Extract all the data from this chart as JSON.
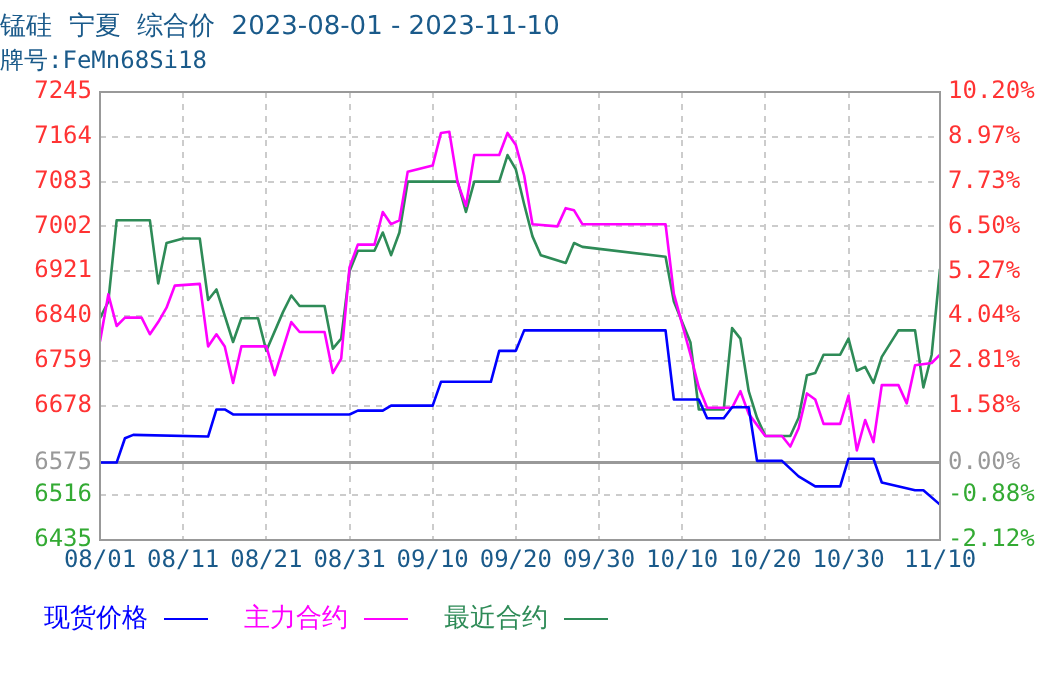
{
  "chart_data": {
    "type": "line",
    "title": "锰硅  宁夏  综合价  2023-08-01 - 2023-11-10",
    "subtitle": "牌号:FeMn68Si18",
    "xlim": [
      "2023-08-01",
      "2023-11-10"
    ],
    "xticks": [
      {
        "value": "2023-08-01",
        "label": "08/01"
      },
      {
        "value": "2023-08-11",
        "label": "08/11"
      },
      {
        "value": "2023-08-21",
        "label": "08/21"
      },
      {
        "value": "2023-08-31",
        "label": "08/31"
      },
      {
        "value": "2023-09-10",
        "label": "09/10"
      },
      {
        "value": "2023-09-20",
        "label": "09/20"
      },
      {
        "value": "2023-09-30",
        "label": "09/30"
      },
      {
        "value": "2023-10-10",
        "label": "10/10"
      },
      {
        "value": "2023-10-20",
        "label": "10/20"
      },
      {
        "value": "2023-10-30",
        "label": "10/30"
      },
      {
        "value": "2023-11-10",
        "label": "11/10"
      }
    ],
    "ylim": [
      6435,
      7245
    ],
    "yticks": [
      6435,
      6516,
      6575,
      6678,
      6759,
      6840,
      6921,
      7002,
      7083,
      7164,
      7245
    ],
    "y2lim": [
      -2.12,
      10.2
    ],
    "y2ticks": [
      {
        "value": -2.12,
        "label": "-2.12%"
      },
      {
        "value": -0.88,
        "label": "-0.88%"
      },
      {
        "value": 0,
        "label": "0.00%"
      },
      {
        "value": 1.58,
        "label": "1.58%"
      },
      {
        "value": 2.81,
        "label": "2.81%"
      },
      {
        "value": 4.04,
        "label": "4.04%"
      },
      {
        "value": 5.27,
        "label": "5.27%"
      },
      {
        "value": 6.5,
        "label": "6.50%"
      },
      {
        "value": 7.73,
        "label": "7.73%"
      },
      {
        "value": 8.97,
        "label": "8.97%"
      },
      {
        "value": 10.2,
        "label": "10.20%"
      }
    ],
    "ref_lines": [
      {
        "axis": "y",
        "value": 6575,
        "color": "#999999"
      }
    ],
    "grid": true,
    "legend": "bottom",
    "marker": "none",
    "line_style": "solid",
    "series": [
      {
        "name": "现货价格",
        "color": "#0000ff",
        "x": [
          "2023-08-01",
          "2023-08-03",
          "2023-08-04",
          "2023-08-05",
          "2023-08-14",
          "2023-08-15",
          "2023-08-16",
          "2023-08-17",
          "2023-08-31",
          "2023-09-01",
          "2023-09-04",
          "2023-09-05",
          "2023-09-10",
          "2023-09-11",
          "2023-09-17",
          "2023-09-18",
          "2023-09-20",
          "2023-09-21",
          "2023-10-08",
          "2023-10-09",
          "2023-10-12",
          "2023-10-13",
          "2023-10-15",
          "2023-10-16",
          "2023-10-18",
          "2023-10-19",
          "2023-10-22",
          "2023-10-24",
          "2023-10-26",
          "2023-10-29",
          "2023-10-30",
          "2023-11-02",
          "2023-11-03",
          "2023-11-07",
          "2023-11-08",
          "2023-11-10"
        ],
        "values": [
          6575,
          6575,
          6619,
          6625,
          6622,
          6671,
          6671,
          6662,
          6662,
          6669,
          6669,
          6678,
          6678,
          6721,
          6721,
          6777,
          6777,
          6814,
          6814,
          6689,
          6689,
          6655,
          6655,
          6675,
          6675,
          6578,
          6578,
          6550,
          6532,
          6532,
          6582,
          6582,
          6539,
          6525,
          6525,
          6499
        ]
      },
      {
        "name": "主力合约",
        "color": "#ff00ff",
        "x": [
          "2023-08-01",
          "2023-08-02",
          "2023-08-03",
          "2023-08-04",
          "2023-08-06",
          "2023-08-07",
          "2023-08-08",
          "2023-08-09",
          "2023-08-10",
          "2023-08-13",
          "2023-08-14",
          "2023-08-15",
          "2023-08-16",
          "2023-08-17",
          "2023-08-18",
          "2023-08-21",
          "2023-08-22",
          "2023-08-24",
          "2023-08-25",
          "2023-08-28",
          "2023-08-29",
          "2023-08-30",
          "2023-08-31",
          "2023-09-01",
          "2023-09-03",
          "2023-09-04",
          "2023-09-05",
          "2023-09-06",
          "2023-09-07",
          "2023-09-10",
          "2023-09-11",
          "2023-09-12",
          "2023-09-13",
          "2023-09-14",
          "2023-09-15",
          "2023-09-18",
          "2023-09-19",
          "2023-09-20",
          "2023-09-21",
          "2023-09-22",
          "2023-09-25",
          "2023-09-26",
          "2023-09-27",
          "2023-09-28",
          "2023-10-08",
          "2023-10-09",
          "2023-10-11",
          "2023-10-12",
          "2023-10-13",
          "2023-10-16",
          "2023-10-17",
          "2023-10-18",
          "2023-10-20",
          "2023-10-22",
          "2023-10-23",
          "2023-10-24",
          "2023-10-25",
          "2023-10-26",
          "2023-10-27",
          "2023-10-29",
          "2023-10-30",
          "2023-10-31",
          "2023-11-01",
          "2023-11-02",
          "2023-11-03",
          "2023-11-05",
          "2023-11-06",
          "2023-11-07",
          "2023-11-09",
          "2023-11-10"
        ],
        "values": [
          6794,
          6879,
          6822,
          6837,
          6837,
          6807,
          6829,
          6855,
          6895,
          6898,
          6785,
          6807,
          6785,
          6719,
          6785,
          6785,
          6733,
          6829,
          6811,
          6811,
          6737,
          6763,
          6928,
          6969,
          6969,
          7028,
          7006,
          7013,
          7101,
          7112,
          7171,
          7173,
          7081,
          7039,
          7131,
          7131,
          7171,
          7149,
          7094,
          7006,
          7002,
          7035,
          7031,
          7006,
          7006,
          6880,
          6770,
          6711,
          6674,
          6674,
          6704,
          6663,
          6623,
          6623,
          6604,
          6637,
          6700,
          6689,
          6645,
          6645,
          6696,
          6597,
          6652,
          6612,
          6715,
          6715,
          6682,
          6751,
          6755,
          6770
        ]
      },
      {
        "name": "最近合约",
        "color": "#2e8b57",
        "x": [
          "2023-08-01",
          "2023-08-02",
          "2023-08-03",
          "2023-08-07",
          "2023-08-08",
          "2023-08-09",
          "2023-08-11",
          "2023-08-13",
          "2023-08-14",
          "2023-08-15",
          "2023-08-17",
          "2023-08-18",
          "2023-08-20",
          "2023-08-21",
          "2023-08-23",
          "2023-08-24",
          "2023-08-25",
          "2023-08-28",
          "2023-08-29",
          "2023-08-30",
          "2023-08-31",
          "2023-09-01",
          "2023-09-03",
          "2023-09-04",
          "2023-09-05",
          "2023-09-06",
          "2023-09-07",
          "2023-09-13",
          "2023-09-14",
          "2023-09-15",
          "2023-09-18",
          "2023-09-19",
          "2023-09-20",
          "2023-09-21",
          "2023-09-22",
          "2023-09-23",
          "2023-09-26",
          "2023-09-27",
          "2023-09-28",
          "2023-10-08",
          "2023-10-09",
          "2023-10-11",
          "2023-10-12",
          "2023-10-15",
          "2023-10-16",
          "2023-10-17",
          "2023-10-18",
          "2023-10-19",
          "2023-10-20",
          "2023-10-23",
          "2023-10-24",
          "2023-10-25",
          "2023-10-26",
          "2023-10-27",
          "2023-10-29",
          "2023-10-30",
          "2023-10-31",
          "2023-11-01",
          "2023-11-02",
          "2023-11-03",
          "2023-11-05",
          "2023-11-07",
          "2023-11-08",
          "2023-11-09",
          "2023-11-10"
        ],
        "values": [
          6836,
          6866,
          7013,
          7013,
          6899,
          6972,
          6980,
          6980,
          6869,
          6888,
          6793,
          6836,
          6836,
          6777,
          6847,
          6877,
          6858,
          6858,
          6781,
          6799,
          6921,
          6958,
          6958,
          6991,
          6950,
          6991,
          7083,
          7083,
          7028,
          7083,
          7083,
          7131,
          7105,
          7042,
          6984,
          6950,
          6936,
          6972,
          6965,
          6947,
          6866,
          6792,
          6671,
          6671,
          6818,
          6799,
          6704,
          6656,
          6623,
          6623,
          6656,
          6733,
          6737,
          6770,
          6770,
          6799,
          6741,
          6748,
          6719,
          6766,
          6814,
          6814,
          6711,
          6770,
          6925
        ]
      }
    ]
  }
}
